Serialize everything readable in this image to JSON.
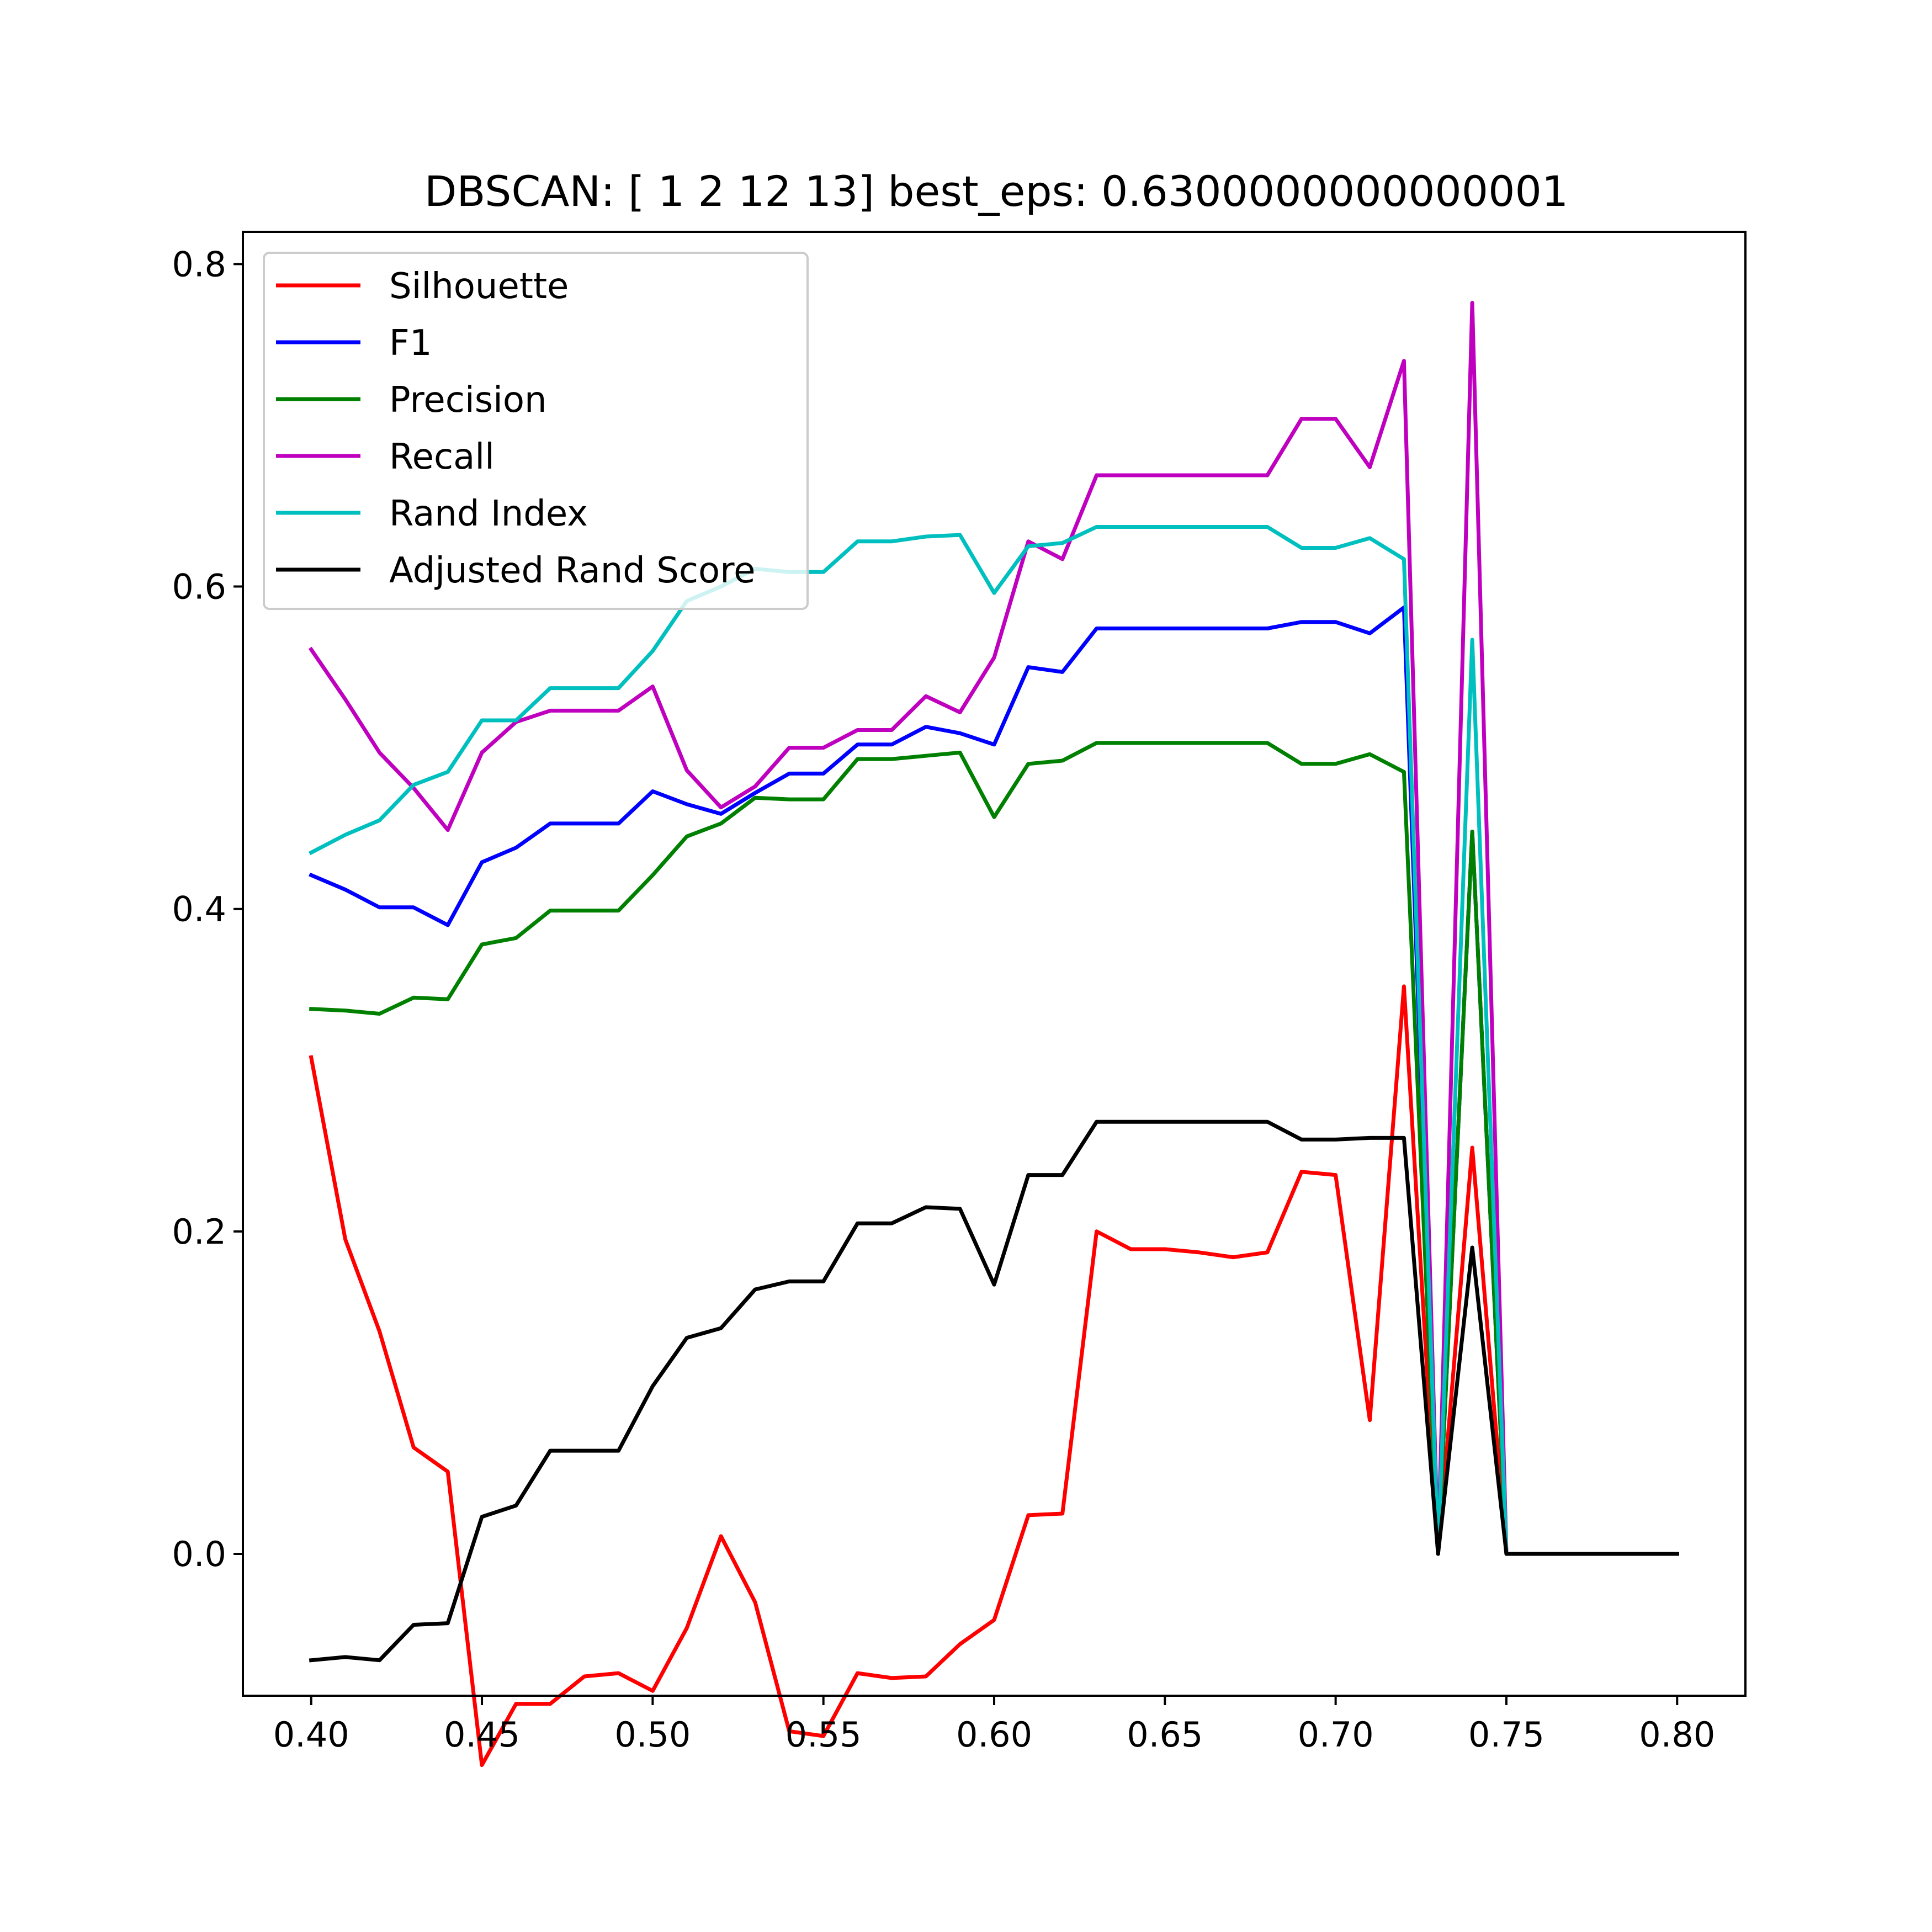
{
  "chart_data": {
    "type": "line",
    "title": "DBSCAN: [ 1  2 12 13] best_eps: 0.6300000000000001",
    "xlabel": "",
    "ylabel": "",
    "xlim": [
      0.38,
      0.82
    ],
    "ylim": [
      -0.088,
      0.82
    ],
    "xticks": [
      "0.40",
      "0.45",
      "0.50",
      "0.55",
      "0.60",
      "0.65",
      "0.70",
      "0.75",
      "0.80"
    ],
    "yticks": [
      "0.0",
      "0.2",
      "0.4",
      "0.6",
      "0.8"
    ],
    "grid": false,
    "legend_position": "upper-left",
    "x": [
      0.4,
      0.41,
      0.42,
      0.43,
      0.44,
      0.45,
      0.46,
      0.47,
      0.48,
      0.49,
      0.5,
      0.51,
      0.52,
      0.53,
      0.54,
      0.55,
      0.56,
      0.57,
      0.58,
      0.59,
      0.6,
      0.61,
      0.62,
      0.63,
      0.64,
      0.65,
      0.66,
      0.67,
      0.68,
      0.69,
      0.7,
      0.71,
      0.72,
      0.73,
      0.74,
      0.75,
      0.76,
      0.77,
      0.78,
      0.79,
      0.8
    ],
    "series": [
      {
        "name": "Silhouette",
        "color": "#ff0000",
        "values": [
          0.308,
          0.195,
          0.138,
          0.066,
          0.051,
          -0.131,
          -0.093,
          -0.093,
          -0.076,
          -0.074,
          -0.085,
          -0.046,
          0.011,
          -0.03,
          -0.11,
          -0.113,
          -0.074,
          -0.077,
          -0.076,
          -0.056,
          -0.041,
          0.024,
          0.025,
          0.2,
          0.189,
          0.189,
          0.187,
          0.184,
          0.187,
          0.237,
          0.235,
          0.083,
          0.352,
          0.0,
          0.252,
          0.0,
          0.0,
          0.0,
          0.0,
          0.0,
          0.0
        ]
      },
      {
        "name": "F1",
        "color": "#0000ff",
        "values": [
          0.421,
          0.412,
          0.401,
          0.401,
          0.39,
          0.429,
          0.438,
          0.453,
          0.453,
          0.453,
          0.473,
          0.465,
          0.459,
          0.472,
          0.484,
          0.484,
          0.502,
          0.502,
          0.513,
          0.509,
          0.502,
          0.55,
          0.547,
          0.574,
          0.574,
          0.574,
          0.574,
          0.574,
          0.574,
          0.578,
          0.578,
          0.571,
          0.587,
          0.0,
          0.448,
          0.0,
          0.0,
          0.0,
          0.0,
          0.0,
          0.0
        ]
      },
      {
        "name": "Precision",
        "color": "#008000",
        "values": [
          0.338,
          0.337,
          0.335,
          0.345,
          0.344,
          0.378,
          0.382,
          0.399,
          0.399,
          0.399,
          0.421,
          0.445,
          0.453,
          0.469,
          0.468,
          0.468,
          0.493,
          0.493,
          0.495,
          0.497,
          0.457,
          0.49,
          0.492,
          0.503,
          0.503,
          0.503,
          0.503,
          0.503,
          0.503,
          0.49,
          0.49,
          0.496,
          0.485,
          0.0,
          0.448,
          0.0,
          0.0,
          0.0,
          0.0,
          0.0,
          0.0
        ]
      },
      {
        "name": "Recall",
        "color": "#bf00bf",
        "values": [
          0.561,
          0.53,
          0.497,
          0.475,
          0.449,
          0.497,
          0.516,
          0.523,
          0.523,
          0.523,
          0.538,
          0.486,
          0.463,
          0.476,
          0.5,
          0.5,
          0.511,
          0.511,
          0.532,
          0.522,
          0.556,
          0.628,
          0.617,
          0.669,
          0.669,
          0.669,
          0.669,
          0.669,
          0.669,
          0.704,
          0.704,
          0.674,
          0.74,
          0.0,
          0.776,
          0.0,
          0.0,
          0.0,
          0.0,
          0.0,
          0.0
        ]
      },
      {
        "name": "Rand Index",
        "color": "#00bfbf",
        "values": [
          0.435,
          0.446,
          0.455,
          0.477,
          0.485,
          0.517,
          0.517,
          0.537,
          0.537,
          0.537,
          0.56,
          0.591,
          0.6,
          0.611,
          0.609,
          0.609,
          0.628,
          0.628,
          0.631,
          0.632,
          0.596,
          0.625,
          0.627,
          0.637,
          0.637,
          0.637,
          0.637,
          0.637,
          0.637,
          0.624,
          0.624,
          0.63,
          0.617,
          0.0,
          0.567,
          0.0,
          0.0,
          0.0,
          0.0,
          0.0,
          0.0
        ]
      },
      {
        "name": "Adjusted Rand Score",
        "color": "#000000",
        "values": [
          -0.066,
          -0.064,
          -0.066,
          -0.044,
          -0.043,
          0.023,
          0.03,
          0.064,
          0.064,
          0.064,
          0.104,
          0.134,
          0.14,
          0.164,
          0.169,
          0.169,
          0.205,
          0.205,
          0.215,
          0.214,
          0.167,
          0.235,
          0.235,
          0.268,
          0.268,
          0.268,
          0.268,
          0.268,
          0.268,
          0.257,
          0.257,
          0.258,
          0.258,
          0.0,
          0.19,
          0.0,
          0.0,
          0.0,
          0.0,
          0.0,
          0.0
        ]
      }
    ]
  }
}
